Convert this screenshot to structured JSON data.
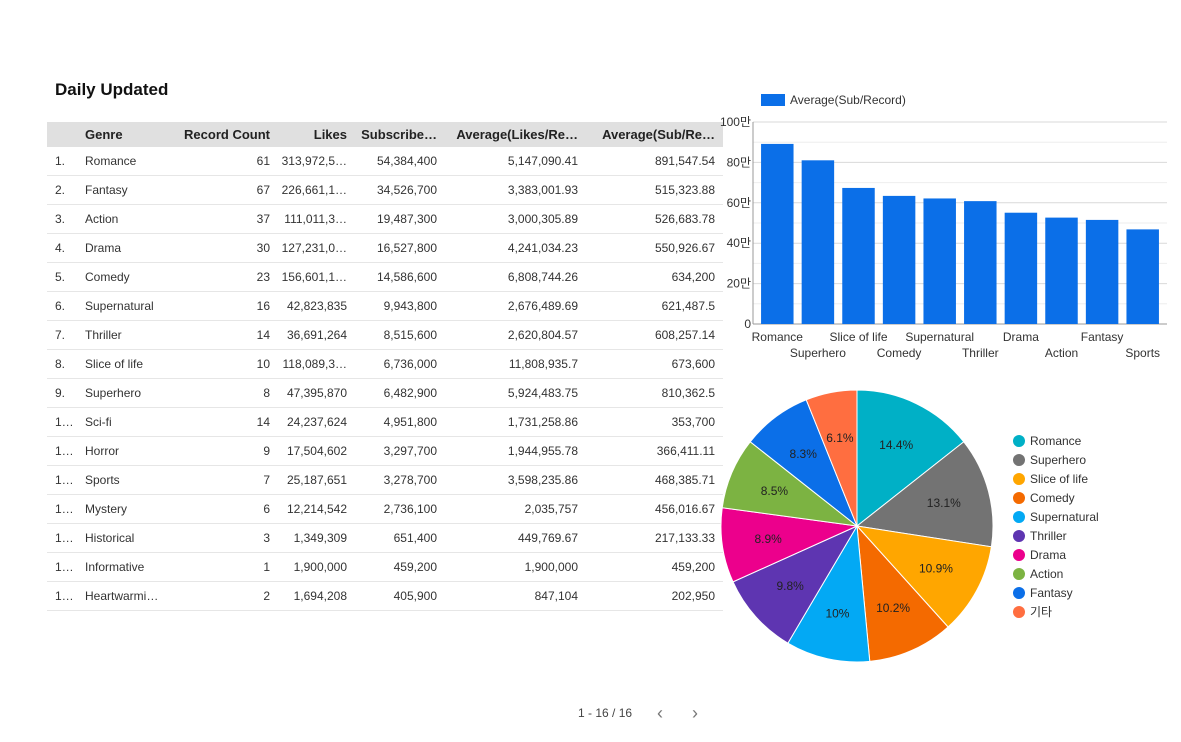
{
  "page_title": "Daily Updated",
  "table": {
    "columns": [
      "Genre",
      "Record Count",
      "Likes",
      "Subscribe…",
      "Average(Likes/Re…",
      "Average(Sub/Re…"
    ],
    "rows": [
      [
        "1.",
        "Romance",
        "61",
        "313,972,5…",
        "54,384,400",
        "5,147,090.41",
        "891,547.54"
      ],
      [
        "2.",
        "Fantasy",
        "67",
        "226,661,1…",
        "34,526,700",
        "3,383,001.93",
        "515,323.88"
      ],
      [
        "3.",
        "Action",
        "37",
        "111,011,3…",
        "19,487,300",
        "3,000,305.89",
        "526,683.78"
      ],
      [
        "4.",
        "Drama",
        "30",
        "127,231,0…",
        "16,527,800",
        "4,241,034.23",
        "550,926.67"
      ],
      [
        "5.",
        "Comedy",
        "23",
        "156,601,1…",
        "14,586,600",
        "6,808,744.26",
        "634,200"
      ],
      [
        "6.",
        "Supernatural",
        "16",
        "42,823,835",
        "9,943,800",
        "2,676,489.69",
        "621,487.5"
      ],
      [
        "7.",
        "Thriller",
        "14",
        "36,691,264",
        "8,515,600",
        "2,620,804.57",
        "608,257.14"
      ],
      [
        "8.",
        "Slice of life",
        "10",
        "118,089,3…",
        "6,736,000",
        "11,808,935.7",
        "673,600"
      ],
      [
        "9.",
        "Superhero",
        "8",
        "47,395,870",
        "6,482,900",
        "5,924,483.75",
        "810,362.5"
      ],
      [
        "1…",
        "Sci-fi",
        "14",
        "24,237,624",
        "4,951,800",
        "1,731,258.86",
        "353,700"
      ],
      [
        "1…",
        "Horror",
        "9",
        "17,504,602",
        "3,297,700",
        "1,944,955.78",
        "366,411.11"
      ],
      [
        "1…",
        "Sports",
        "7",
        "25,187,651",
        "3,278,700",
        "3,598,235.86",
        "468,385.71"
      ],
      [
        "1…",
        "Mystery",
        "6",
        "12,214,542",
        "2,736,100",
        "2,035,757",
        "456,016.67"
      ],
      [
        "1…",
        "Historical",
        "3",
        "1,349,309",
        "651,400",
        "449,769.67",
        "217,133.33"
      ],
      [
        "1…",
        "Informative",
        "1",
        "1,900,000",
        "459,200",
        "1,900,000",
        "459,200"
      ],
      [
        "1…",
        "Heartwarmi…",
        "2",
        "1,694,208",
        "405,900",
        "847,104",
        "202,950"
      ]
    ]
  },
  "pagination": {
    "label": "1 - 16 / 16",
    "prev_icon": "chevron-left-icon",
    "next_icon": "chevron-right-icon"
  },
  "chart_data": [
    {
      "type": "bar",
      "legend": "Average(Sub/Record)",
      "legend_position": "top-left",
      "color": "#0b6fe8",
      "categories": [
        "Romance",
        "Superhero",
        "Slice of life",
        "Comedy",
        "Supernatural",
        "Thriller",
        "Drama",
        "Action",
        "Fantasy",
        "Sports"
      ],
      "values": [
        891547.54,
        810362.5,
        673600,
        634200,
        621487.5,
        608257.14,
        550926.67,
        526683.78,
        515323.88,
        468385.71
      ],
      "yticks": [
        0,
        200000,
        400000,
        600000,
        800000,
        1000000
      ],
      "ytick_labels": [
        "0",
        "20만",
        "40만",
        "60만",
        "80만",
        "100만"
      ],
      "ylim": [
        0,
        1000000
      ],
      "grid": true
    },
    {
      "type": "pie",
      "legend_position": "right",
      "slices": [
        {
          "label": "Romance",
          "value": 14.4,
          "text": "14.4%",
          "color": "#00b0c6"
        },
        {
          "label": "Superhero",
          "value": 13.1,
          "text": "13.1%",
          "color": "#737373"
        },
        {
          "label": "Slice of life",
          "value": 10.9,
          "text": "10.9%",
          "color": "#ffa600"
        },
        {
          "label": "Comedy",
          "value": 10.2,
          "text": "10.2%",
          "color": "#f46a00"
        },
        {
          "label": "Supernatural",
          "value": 10.0,
          "text": "10%",
          "color": "#03a9f4"
        },
        {
          "label": "Thriller",
          "value": 9.8,
          "text": "9.8%",
          "color": "#5e35b1"
        },
        {
          "label": "Drama",
          "value": 8.9,
          "text": "8.9%",
          "color": "#ec008c"
        },
        {
          "label": "Action",
          "value": 8.5,
          "text": "8.5%",
          "color": "#7cb342"
        },
        {
          "label": "Fantasy",
          "value": 8.3,
          "text": "8.3%",
          "color": "#0b6fe8"
        },
        {
          "label": "기타",
          "value": 6.1,
          "text": "6.1%",
          "color": "#ff6e40"
        }
      ]
    }
  ]
}
